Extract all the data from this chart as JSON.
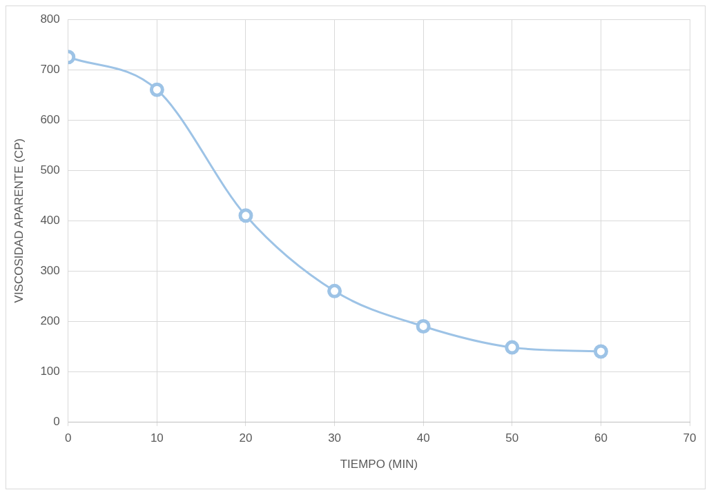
{
  "chart_data": {
    "type": "line",
    "xlabel": "TIEMPO (MIN)",
    "ylabel": "VISCOSIDAD APARENTE (CP)",
    "x": [
      0,
      10,
      20,
      30,
      40,
      50,
      60
    ],
    "series": [
      {
        "color": "#9dc3e6",
        "values": [
          725,
          660,
          410,
          260,
          190,
          148,
          140
        ]
      }
    ],
    "xlim": [
      0,
      70
    ],
    "xticks": [
      0,
      10,
      20,
      30,
      40,
      50,
      60,
      70
    ],
    "ylim": [
      0,
      800
    ],
    "yticks": [
      0,
      100,
      200,
      300,
      400,
      500,
      600,
      700,
      800
    ],
    "grid": true,
    "legend": false,
    "marker": "circle",
    "line_style": "solid"
  }
}
